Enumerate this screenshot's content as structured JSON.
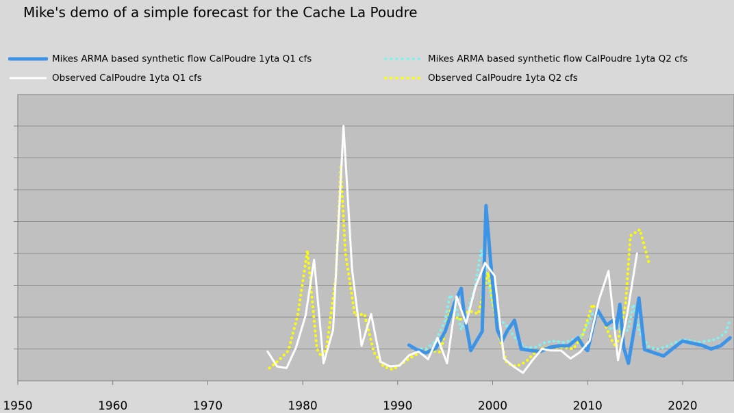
{
  "chart_data": {
    "type": "line",
    "title": "Mike's demo of a simple forecast for the Cache La Poudre",
    "xlabel": "",
    "ylabel": "",
    "xlim": [
      1950,
      2025
    ],
    "ylim": [
      0,
      9
    ],
    "grid": true,
    "legend_position": "top",
    "x_ticks": [
      "1950",
      "1960",
      "1970",
      "1980",
      "1990",
      "2000",
      "2010",
      "2020"
    ],
    "series": [
      {
        "name": "Mikes ARMA based synthetic flow CalPoudre 1yta Q1 cfs",
        "color": "#3d94e6",
        "style": "solid-thick",
        "points": [
          [
            1991.2,
            1.12
          ],
          [
            1992,
            0.98
          ],
          [
            1993,
            0.88
          ],
          [
            1994,
            1.02
          ],
          [
            1995,
            1.55
          ],
          [
            1996,
            2.45
          ],
          [
            1996.7,
            2.9
          ],
          [
            1997,
            2.1
          ],
          [
            1997.7,
            0.95
          ],
          [
            1998.3,
            1.25
          ],
          [
            1998.9,
            1.55
          ],
          [
            1999.3,
            5.5
          ],
          [
            1999.8,
            3.7
          ],
          [
            2000.5,
            1.6
          ],
          [
            2001,
            1.25
          ],
          [
            2001.5,
            1.55
          ],
          [
            2002.3,
            1.9
          ],
          [
            2003,
            1.0
          ],
          [
            2004,
            0.95
          ],
          [
            2005,
            0.92
          ],
          [
            2006,
            1.05
          ],
          [
            2007,
            1.1
          ],
          [
            2008,
            1.1
          ],
          [
            2009,
            1.35
          ],
          [
            2009.6,
            1.05
          ],
          [
            2010,
            0.95
          ],
          [
            2011,
            2.25
          ],
          [
            2012,
            1.75
          ],
          [
            2012.7,
            1.9
          ],
          [
            2013,
            1.65
          ],
          [
            2013.4,
            2.4
          ],
          [
            2013.8,
            1.05
          ],
          [
            2014.3,
            0.55
          ],
          [
            2015,
            1.8
          ],
          [
            2015.4,
            2.6
          ],
          [
            2016,
            0.98
          ],
          [
            2017,
            0.88
          ],
          [
            2018,
            0.78
          ],
          [
            2019,
            1.02
          ],
          [
            2020,
            1.25
          ],
          [
            2021,
            1.18
          ],
          [
            2022,
            1.12
          ],
          [
            2023,
            1.0
          ],
          [
            2024,
            1.1
          ],
          [
            2025,
            1.35
          ]
        ]
      },
      {
        "name": "Mikes ARMA based synthetic flow CalPoudre 1yta Q2 cfs",
        "color": "#7ff2f2",
        "style": "dotted",
        "points": [
          [
            1992,
            1.0
          ],
          [
            1993,
            1.0
          ],
          [
            1994,
            1.25
          ],
          [
            1995,
            1.9
          ],
          [
            1995.5,
            2.7
          ],
          [
            1996,
            2.5
          ],
          [
            1996.7,
            1.6
          ],
          [
            1997.3,
            2.1
          ],
          [
            1998.1,
            2.9
          ],
          [
            1998.8,
            4.1
          ],
          [
            1999.5,
            3.2
          ],
          [
            2000,
            2.4
          ],
          [
            2000.7,
            1.9
          ],
          [
            2001.3,
            1.8
          ],
          [
            2001.9,
            1.55
          ],
          [
            2002.6,
            1.25
          ],
          [
            2003.5,
            1.05
          ],
          [
            2004.5,
            1.05
          ],
          [
            2005.5,
            1.2
          ],
          [
            2006.5,
            1.25
          ],
          [
            2007.5,
            1.2
          ],
          [
            2008.5,
            1.3
          ],
          [
            2009.5,
            1.45
          ],
          [
            2010.5,
            2.1
          ],
          [
            2011.5,
            2.0
          ],
          [
            2012.5,
            1.6
          ],
          [
            2013.2,
            1.75
          ],
          [
            2013.7,
            1.5
          ],
          [
            2014.3,
            1.6
          ],
          [
            2014.8,
            2.4
          ],
          [
            2015.5,
            1.5
          ],
          [
            2016.5,
            1.05
          ],
          [
            2017.5,
            1.0
          ],
          [
            2018.5,
            1.1
          ],
          [
            2019.5,
            1.25
          ],
          [
            2020.5,
            1.3
          ],
          [
            2021.5,
            1.2
          ],
          [
            2022.5,
            1.25
          ],
          [
            2023.5,
            1.3
          ],
          [
            2024.5,
            1.5
          ],
          [
            2025,
            1.9
          ]
        ]
      },
      {
        "name": "Observed CalPoudre 1yta Q1 cfs",
        "color": "#ffffff",
        "style": "solid",
        "points": [
          [
            1976.3,
            0.92
          ],
          [
            1977.3,
            0.45
          ],
          [
            1978.3,
            0.4
          ],
          [
            1979.3,
            1.05
          ],
          [
            1980.3,
            2.05
          ],
          [
            1981.2,
            3.8
          ],
          [
            1982.2,
            0.55
          ],
          [
            1983.2,
            1.6
          ],
          [
            1984.3,
            8.0
          ],
          [
            1985.2,
            3.5
          ],
          [
            1986.2,
            1.1
          ],
          [
            1987.2,
            2.1
          ],
          [
            1988.2,
            0.6
          ],
          [
            1989.2,
            0.45
          ],
          [
            1990.2,
            0.48
          ],
          [
            1991.2,
            0.8
          ],
          [
            1992.2,
            0.92
          ],
          [
            1993.2,
            0.68
          ],
          [
            1994.2,
            1.35
          ],
          [
            1995.2,
            0.55
          ],
          [
            1996.2,
            2.65
          ],
          [
            1997.2,
            1.8
          ],
          [
            1998.2,
            2.95
          ],
          [
            1999.2,
            3.7
          ],
          [
            2000.2,
            3.3
          ],
          [
            2001.2,
            0.7
          ],
          [
            2002.2,
            0.45
          ],
          [
            2003.2,
            0.25
          ],
          [
            2004.2,
            0.65
          ],
          [
            2005.2,
            1.0
          ],
          [
            2006.2,
            0.95
          ],
          [
            2007.2,
            0.95
          ],
          [
            2008.2,
            0.7
          ],
          [
            2009.2,
            0.9
          ],
          [
            2010.2,
            1.25
          ],
          [
            2011.2,
            2.55
          ],
          [
            2012.2,
            3.45
          ],
          [
            2013.2,
            0.65
          ],
          [
            2014.2,
            2.15
          ],
          [
            2015.2,
            4.0
          ]
        ]
      },
      {
        "name": "Observed CalPoudre 1yta Q2 cfs",
        "color": "#ffff00",
        "style": "dotted",
        "points": [
          [
            1976.5,
            0.4
          ],
          [
            1977.5,
            0.65
          ],
          [
            1978.5,
            0.95
          ],
          [
            1979.5,
            2.1
          ],
          [
            1980.5,
            4.1
          ],
          [
            1981.5,
            1.0
          ],
          [
            1982,
            0.75
          ],
          [
            1982.5,
            1.0
          ],
          [
            1983.5,
            3.3
          ],
          [
            1984,
            6.7
          ],
          [
            1984.5,
            4.0
          ],
          [
            1985.5,
            2.05
          ],
          [
            1986.5,
            2.1
          ],
          [
            1987.5,
            0.9
          ],
          [
            1988.5,
            0.45
          ],
          [
            1989.5,
            0.35
          ],
          [
            1990.5,
            0.55
          ],
          [
            1991.5,
            0.75
          ],
          [
            1992.5,
            0.9
          ],
          [
            1993.5,
            0.95
          ],
          [
            1994.5,
            0.9
          ],
          [
            1995.5,
            2.2
          ],
          [
            1996.5,
            1.9
          ],
          [
            1997.5,
            2.2
          ],
          [
            1998.5,
            2.1
          ],
          [
            1999.5,
            3.4
          ],
          [
            2000.5,
            1.6
          ],
          [
            2001.5,
            0.55
          ],
          [
            2002.5,
            0.45
          ],
          [
            2003.5,
            0.6
          ],
          [
            2004.5,
            0.9
          ],
          [
            2005.5,
            1.05
          ],
          [
            2006.5,
            1.05
          ],
          [
            2007.5,
            1.05
          ],
          [
            2008.5,
            1.0
          ],
          [
            2009.5,
            1.45
          ],
          [
            2010.5,
            2.4
          ],
          [
            2011.5,
            2.0
          ],
          [
            2012.5,
            1.3
          ],
          [
            2013,
            1.05
          ],
          [
            2013.5,
            1.65
          ],
          [
            2014,
            2.4
          ],
          [
            2014.5,
            4.55
          ],
          [
            2015.5,
            4.75
          ],
          [
            2016.5,
            3.65
          ]
        ]
      }
    ]
  }
}
